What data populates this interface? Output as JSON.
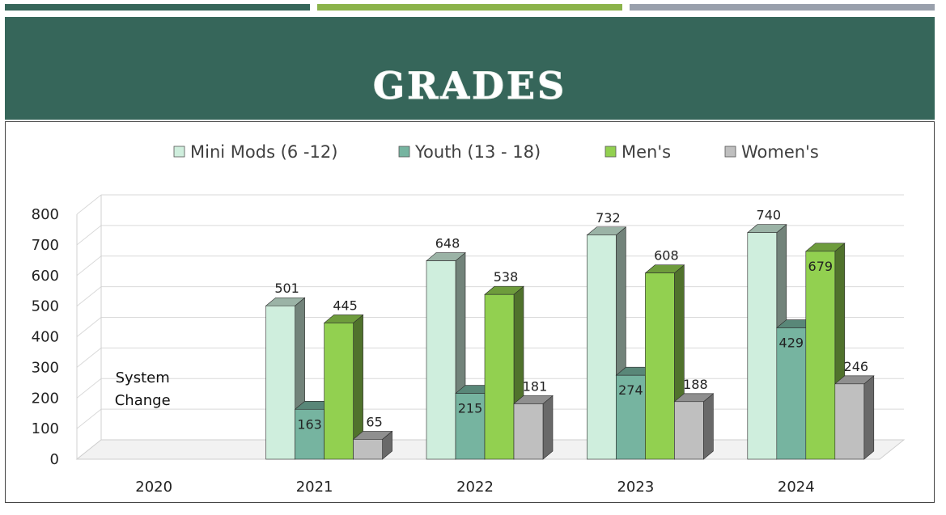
{
  "colors": {
    "banner": "#36665a",
    "bar_dark": "#36665a",
    "bar_green": "#8bb34a",
    "bar_gray": "#99a0ac"
  },
  "header": {
    "title": "GRADES"
  },
  "chart_data": {
    "type": "bar",
    "style": "3d-clustered-column",
    "categories": [
      "2020",
      "2021",
      "2022",
      "2023",
      "2024"
    ],
    "series": [
      {
        "name": "Mini Mods (6 -12)",
        "color": "#cfeedd",
        "values": [
          null,
          501,
          648,
          732,
          740
        ]
      },
      {
        "name": "Youth (13 - 18)",
        "color": "#76b4a0",
        "values": [
          null,
          163,
          215,
          274,
          429
        ]
      },
      {
        "name": "Men's",
        "color": "#92d050",
        "values": [
          null,
          445,
          538,
          608,
          679
        ]
      },
      {
        "name": "Women's",
        "color": "#bfbfbf",
        "values": [
          null,
          65,
          181,
          188,
          246
        ]
      }
    ],
    "y_ticks": [
      "0",
      "100",
      "200",
      "300",
      "400",
      "500",
      "600",
      "700",
      "800"
    ],
    "ylim": [
      0,
      800
    ],
    "grid": true,
    "legend": "top",
    "annotation": "System\nChange",
    "annotation_category": "2020"
  }
}
